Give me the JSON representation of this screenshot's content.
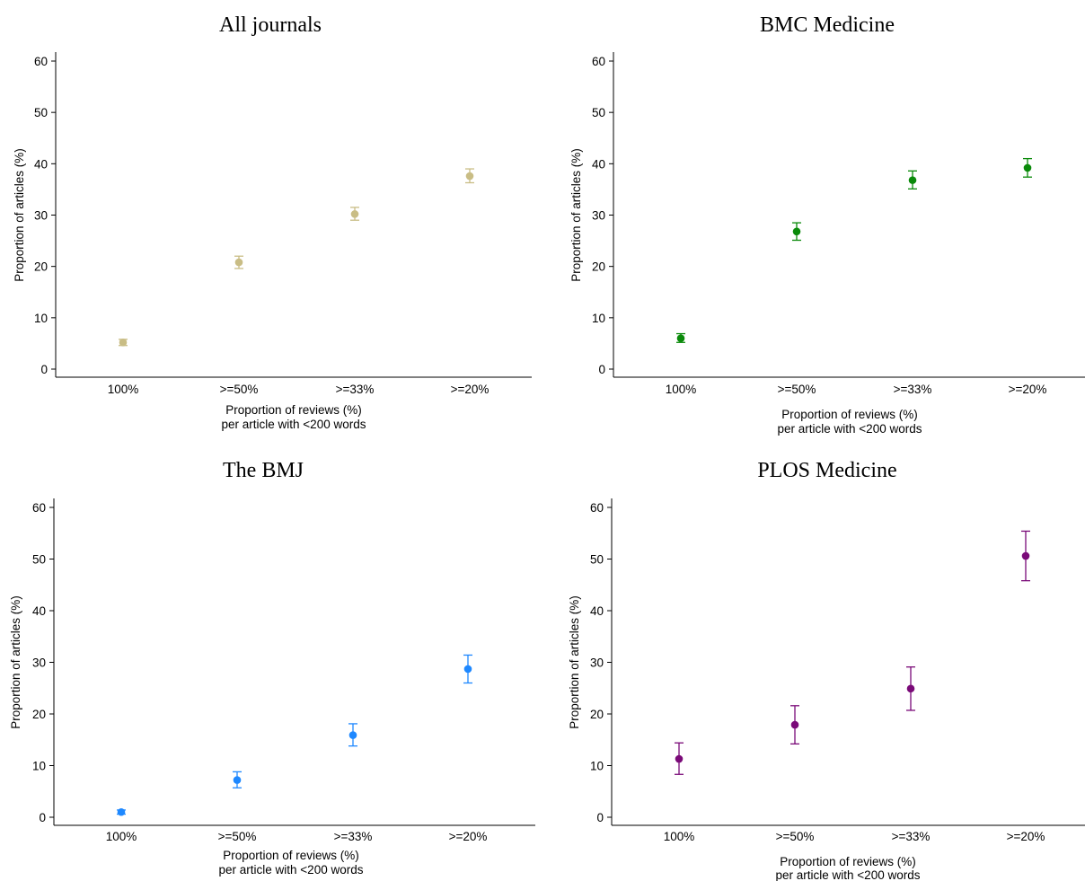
{
  "chart_data": [
    {
      "type": "scatter",
      "title": "All journals",
      "categories": [
        "100%",
        ">=50%",
        ">=33%",
        ">=20%"
      ],
      "xlabel": [
        "Proportion of reviews (%)",
        "per article with <200 words"
      ],
      "ylabel": "Proportion of articles (%)",
      "ylim": [
        0,
        60
      ],
      "yticks": [
        0,
        10,
        20,
        30,
        40,
        50,
        60
      ],
      "color": "#c9bd85",
      "grid": false,
      "series": [
        {
          "values": [
            5.2,
            20.8,
            30.2,
            37.6
          ],
          "lower": [
            4.6,
            19.6,
            29.0,
            36.3
          ],
          "upper": [
            5.8,
            22.0,
            31.5,
            39.0
          ]
        }
      ]
    },
    {
      "type": "scatter",
      "title": "BMC Medicine",
      "categories": [
        "100%",
        ">=50%",
        ">=33%",
        ">=20%"
      ],
      "xlabel": [
        "Proportion of reviews (%)",
        "per article with <200 words"
      ],
      "ylabel": "Proportion of articles (%)",
      "ylim": [
        0,
        60
      ],
      "yticks": [
        0,
        10,
        20,
        30,
        40,
        50,
        60
      ],
      "color": "#0a8a0a",
      "grid": false,
      "series": [
        {
          "values": [
            6.0,
            26.8,
            36.8,
            39.2
          ],
          "lower": [
            5.2,
            25.1,
            35.1,
            37.4
          ],
          "upper": [
            6.9,
            28.5,
            38.6,
            41.0
          ]
        }
      ]
    },
    {
      "type": "scatter",
      "title": "The BMJ",
      "categories": [
        "100%",
        ">=50%",
        ">=33%",
        ">=20%"
      ],
      "xlabel": [
        "Proportion of reviews (%)",
        "per article with <200 words"
      ],
      "ylabel": "Proportion of articles (%)",
      "ylim": [
        0,
        60
      ],
      "yticks": [
        0,
        10,
        20,
        30,
        40,
        50,
        60
      ],
      "color": "#1e88ff",
      "grid": false,
      "series": [
        {
          "values": [
            1.0,
            7.2,
            15.9,
            28.7
          ],
          "lower": [
            0.6,
            5.7,
            13.8,
            26.0
          ],
          "upper": [
            1.4,
            8.8,
            18.1,
            31.4
          ]
        }
      ]
    },
    {
      "type": "scatter",
      "title": "PLOS Medicine",
      "categories": [
        "100%",
        ">=50%",
        ">=33%",
        ">=20%"
      ],
      "xlabel": [
        "Proportion of reviews (%)",
        "per article with <200 words"
      ],
      "ylabel": "Proportion of articles (%)",
      "ylim": [
        0,
        60
      ],
      "yticks": [
        0,
        10,
        20,
        30,
        40,
        50,
        60
      ],
      "color": "#7a0a78",
      "grid": false,
      "series": [
        {
          "values": [
            11.3,
            17.9,
            24.9,
            50.6
          ],
          "lower": [
            8.3,
            14.2,
            20.7,
            45.8
          ],
          "upper": [
            14.4,
            21.6,
            29.1,
            55.4
          ]
        }
      ]
    }
  ]
}
